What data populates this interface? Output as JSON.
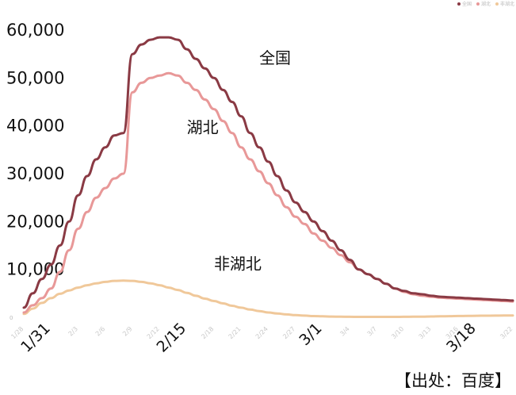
{
  "chart_data": {
    "type": "line",
    "x": [
      "1/28",
      "1/29",
      "1/30",
      "1/31",
      "2/1",
      "2/2",
      "2/3",
      "2/4",
      "2/5",
      "2/6",
      "2/7",
      "2/8",
      "2/9",
      "2/10",
      "2/11",
      "2/12",
      "2/13",
      "2/14",
      "2/15",
      "2/16",
      "2/17",
      "2/18",
      "2/19",
      "2/20",
      "2/21",
      "2/22",
      "2/23",
      "2/24",
      "2/25",
      "2/26",
      "2/27",
      "2/28",
      "2/29",
      "3/1",
      "3/2",
      "3/3",
      "3/4",
      "3/5",
      "3/6",
      "3/7",
      "3/8",
      "3/9",
      "3/10",
      "3/11",
      "3/12",
      "3/13",
      "3/14",
      "3/15",
      "3/16",
      "3/17",
      "3/18",
      "3/19",
      "3/20",
      "3/21",
      "3/22"
    ],
    "x_tick_labels": [
      {
        "x": "1/28",
        "label": "1/28",
        "major": false
      },
      {
        "x": "1/31",
        "label": "1/31",
        "major": true
      },
      {
        "x": "2/3",
        "label": "2/3",
        "major": false
      },
      {
        "x": "2/6",
        "label": "2/6",
        "major": false
      },
      {
        "x": "2/9",
        "label": "2/9",
        "major": false
      },
      {
        "x": "2/12",
        "label": "2/12",
        "major": false
      },
      {
        "x": "2/15",
        "label": "2/15",
        "major": true
      },
      {
        "x": "2/18",
        "label": "2/18",
        "major": false
      },
      {
        "x": "2/21",
        "label": "2/21",
        "major": false
      },
      {
        "x": "2/24",
        "label": "2/24",
        "major": false
      },
      {
        "x": "2/27",
        "label": "2/27",
        "major": false
      },
      {
        "x": "3/1",
        "label": "3/1",
        "major": true
      },
      {
        "x": "3/4",
        "label": "3/4",
        "major": false
      },
      {
        "x": "3/7",
        "label": "3/7",
        "major": false
      },
      {
        "x": "3/10",
        "label": "3/10",
        "major": false
      },
      {
        "x": "3/13",
        "label": "3/13",
        "major": false
      },
      {
        "x": "3/16",
        "label": "3/16",
        "major": false
      },
      {
        "x": "3/18",
        "label": "3/18",
        "major": true
      },
      {
        "x": "3/22",
        "label": "3/22",
        "major": false
      }
    ],
    "y_ticks": [
      {
        "value": 0,
        "label": "0"
      },
      {
        "value": 10000,
        "label": "10,000"
      },
      {
        "value": 20000,
        "label": "20,000"
      },
      {
        "value": 30000,
        "label": "30,000"
      },
      {
        "value": 40000,
        "label": "40,000"
      },
      {
        "value": 50000,
        "label": "50,000"
      },
      {
        "value": 60000,
        "label": "60,000"
      }
    ],
    "ylim": [
      0,
      62000
    ],
    "grid": false,
    "series": [
      {
        "name": "全国",
        "color": "#8a3a44",
        "values": [
          2000,
          5000,
          8000,
          11000,
          15000,
          20000,
          25500,
          29500,
          33000,
          35500,
          38000,
          38500,
          55000,
          57000,
          58000,
          58500,
          58500,
          58000,
          56000,
          54000,
          52000,
          50000,
          47500,
          45000,
          42000,
          38500,
          35500,
          32500,
          29500,
          26500,
          24000,
          22000,
          20000,
          18000,
          16000,
          14000,
          12000,
          10000,
          9000,
          8000,
          7000,
          6000,
          5500,
          5000,
          4800,
          4500,
          4300,
          4200,
          4100,
          4000,
          3900,
          3800,
          3700,
          3600,
          3500
        ]
      },
      {
        "name": "湖北",
        "color": "#e89898",
        "values": [
          1000,
          2500,
          4000,
          6000,
          9500,
          14000,
          18500,
          22000,
          25000,
          27000,
          29000,
          30000,
          47000,
          49000,
          50000,
          50500,
          51000,
          50500,
          49000,
          47500,
          45500,
          43500,
          41000,
          38500,
          35500,
          33000,
          30500,
          28000,
          25500,
          23000,
          21000,
          19500,
          17500,
          16000,
          14500,
          13000,
          11500,
          10000,
          9000,
          8000,
          7000,
          6000,
          5300,
          4800,
          4500,
          4300,
          4100,
          4000,
          3900,
          3800,
          3700,
          3600,
          3500,
          3400,
          3300
        ]
      },
      {
        "name": "非湖北",
        "color": "#f0c89a",
        "values": [
          700,
          1800,
          3000,
          4000,
          4900,
          5600,
          6200,
          6700,
          7100,
          7400,
          7600,
          7650,
          7600,
          7400,
          7100,
          6700,
          6200,
          5700,
          5100,
          4500,
          3900,
          3400,
          2900,
          2400,
          2000,
          1600,
          1300,
          1000,
          800,
          600,
          450,
          350,
          250,
          200,
          150,
          120,
          100,
          90,
          80,
          80,
          80,
          90,
          100,
          110,
          130,
          160,
          200,
          230,
          260,
          290,
          310,
          330,
          350,
          360,
          380
        ]
      }
    ],
    "annotations": [
      {
        "series": "全国",
        "text": "全国",
        "x": "2/23",
        "y": 53000
      },
      {
        "series": "湖北",
        "text": "湖北",
        "x": "2/15",
        "y": 38500
      },
      {
        "series": "非湖北",
        "text": "非湖北",
        "x": "2/18",
        "y": 10000
      }
    ]
  },
  "legend": [
    {
      "name": "全国",
      "color": "#8a3a44"
    },
    {
      "name": "湖北",
      "color": "#e89898"
    },
    {
      "name": "非湖北",
      "color": "#f0c89a"
    }
  ],
  "source": "【出处：百度】"
}
